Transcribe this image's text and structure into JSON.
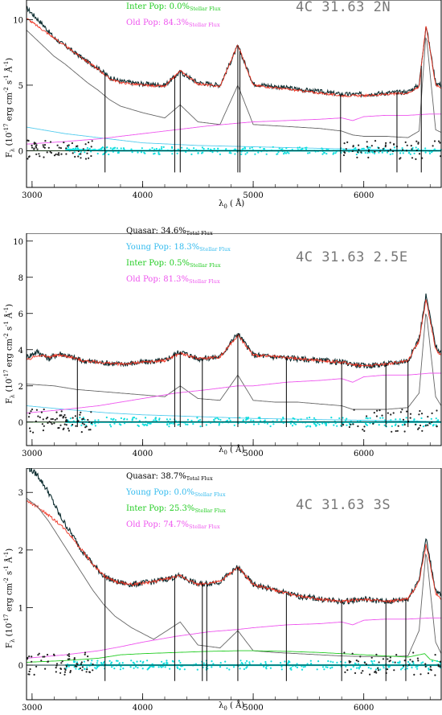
{
  "chart_data": [
    {
      "type": "line",
      "title": "4C 31.63 2N",
      "xlabel": "λ0 ( Å)",
      "ylabel": "Fλ (10^-17 erg cm^-2 s^-1 Å^-1)",
      "xlim": [
        2950,
        6700
      ],
      "ylim": [
        -2.8,
        11.5
      ],
      "xticks": [
        3000,
        4000,
        5000,
        6000
      ],
      "yticks": [
        0,
        5,
        10
      ],
      "legend": [
        {
          "label": "Inter Pop: 0.0%",
          "sub": "Stellar Flux",
          "color": "#22cc22"
        },
        {
          "label": "Old Pop: 84.3%",
          "sub": "Stellar Flux",
          "color": "#ee55ee"
        }
      ],
      "series": [
        {
          "name": "Observed",
          "color": "#0d2d30",
          "x": [
            2950,
            3100,
            3200,
            3300,
            3400,
            3500,
            3600,
            3700,
            3800,
            4000,
            4200,
            4340,
            4500,
            4700,
            4861,
            5000,
            5200,
            5400,
            5600,
            5800,
            6000,
            6200,
            6400,
            6500,
            6563,
            6650,
            6700
          ],
          "y": [
            10.9,
            9.6,
            8.6,
            8.0,
            7.4,
            6.8,
            6.3,
            5.6,
            5.3,
            5.1,
            5.0,
            6.0,
            5.2,
            5.0,
            8.0,
            5.1,
            4.9,
            4.7,
            4.5,
            4.3,
            4.3,
            4.4,
            4.5,
            5.0,
            9.6,
            5.2,
            5.0
          ]
        },
        {
          "name": "Model",
          "color": "#ee3322",
          "x": [
            2950,
            3100,
            3200,
            3300,
            3400,
            3500,
            3600,
            3700,
            3800,
            4000,
            4200,
            4340,
            4500,
            4700,
            4861,
            5000,
            5200,
            5400,
            5600,
            5800,
            6000,
            6200,
            6400,
            6500,
            6563,
            6650,
            6700
          ],
          "y": [
            10.1,
            9.2,
            8.6,
            8.0,
            7.4,
            6.8,
            6.2,
            5.5,
            5.2,
            5.0,
            4.9,
            6.1,
            5.1,
            4.9,
            8.1,
            5.0,
            4.8,
            4.6,
            4.4,
            4.2,
            4.2,
            4.3,
            4.4,
            4.9,
            9.6,
            5.0,
            4.8
          ]
        },
        {
          "name": "Quasar",
          "color": "#666666",
          "x": [
            2950,
            3100,
            3200,
            3300,
            3400,
            3500,
            3600,
            3700,
            3800,
            4000,
            4200,
            4340,
            4500,
            4700,
            4861,
            5000,
            5200,
            5400,
            5600,
            5800,
            5900,
            6000,
            6200,
            6400,
            6500,
            6563,
            6650,
            6700
          ],
          "y": [
            9.2,
            8.0,
            7.2,
            6.6,
            5.9,
            5.2,
            4.6,
            3.9,
            3.4,
            2.9,
            2.5,
            3.5,
            2.2,
            2.0,
            5.0,
            2.0,
            1.9,
            1.8,
            1.7,
            1.5,
            1.2,
            1.1,
            1.1,
            1.0,
            1.5,
            9.0,
            1.6,
            1.4
          ]
        },
        {
          "name": "Young Pop",
          "color": "#55ccee",
          "x": [
            2950,
            3300,
            3700,
            4000,
            4500,
            5000,
            5500,
            6000,
            6500,
            6700
          ],
          "y": [
            1.8,
            1.3,
            0.9,
            0.6,
            0.4,
            0.3,
            0.2,
            0.1,
            0.05,
            0.02
          ]
        },
        {
          "name": "Inter Pop",
          "color": "#22cc22",
          "x": [
            2950,
            4000,
            5000,
            6000,
            6700
          ],
          "y": [
            0.0,
            0.0,
            0.0,
            0.0,
            0.0
          ]
        },
        {
          "name": "Old Pop",
          "color": "#ee55ee",
          "x": [
            2950,
            3300,
            3600,
            3800,
            4000,
            4300,
            4600,
            4861,
            5000,
            5300,
            5600,
            5800,
            5900,
            6000,
            6200,
            6400,
            6600,
            6700
          ],
          "y": [
            0.5,
            0.7,
            0.9,
            1.1,
            1.3,
            1.6,
            1.9,
            2.1,
            2.2,
            2.3,
            2.4,
            2.5,
            2.3,
            2.6,
            2.7,
            2.7,
            2.8,
            2.8
          ]
        },
        {
          "name": "Residual",
          "color": "#11dddd",
          "x": [
            3300,
            3700,
            4000,
            4500,
            5000,
            5500,
            6000,
            6500,
            6700
          ],
          "y": [
            0.1,
            0.0,
            0.0,
            0.0,
            0.0,
            0.0,
            0.0,
            0.0,
            0.0
          ]
        }
      ],
      "lines_x": [
        3660,
        4290,
        4340,
        4861,
        4880,
        5790,
        6300,
        6520
      ],
      "zero_line": 0
    },
    {
      "type": "line",
      "title": "4C 31.63 2.5E",
      "xlabel": "λ0 ( Å)",
      "ylabel": "Fλ (10^-17 erg cm^-2 s^-1 Å^-1)",
      "xlim": [
        2950,
        6700
      ],
      "ylim": [
        -1.3,
        11.5
      ],
      "xticks": [
        3000,
        4000,
        5000,
        6000
      ],
      "yticks": [
        0,
        2,
        4,
        6,
        8,
        10
      ],
      "legend": [
        {
          "label": "Quasar: 34.6%",
          "sub": "Total Flux",
          "color": "#000000"
        },
        {
          "label": "Young Pop: 18.3%",
          "sub": "Stellar Flux",
          "color": "#33bbee"
        },
        {
          "label": "Inter Pop: 0.5%",
          "sub": "Stellar Flux",
          "color": "#22cc22"
        },
        {
          "label": "Old Pop: 81.3%",
          "sub": "Stellar Flux",
          "color": "#ee55ee"
        }
      ],
      "series": [
        {
          "name": "Observed",
          "color": "#0d2d30",
          "x": [
            2950,
            3050,
            3150,
            3250,
            3350,
            3450,
            3600,
            3800,
            4000,
            4200,
            4340,
            4500,
            4700,
            4861,
            5000,
            5200,
            5400,
            5600,
            5800,
            6000,
            6200,
            6400,
            6500,
            6563,
            6650,
            6700
          ],
          "y": [
            3.6,
            3.9,
            3.5,
            3.8,
            3.6,
            3.4,
            3.3,
            3.2,
            3.3,
            3.4,
            3.9,
            3.5,
            3.6,
            4.9,
            3.7,
            3.6,
            3.5,
            3.4,
            3.3,
            3.1,
            3.2,
            3.4,
            4.6,
            7.0,
            4.2,
            3.8
          ]
        },
        {
          "name": "Model",
          "color": "#ee3322",
          "x": [
            2950,
            3050,
            3150,
            3250,
            3350,
            3450,
            3600,
            3800,
            4000,
            4200,
            4340,
            4500,
            4700,
            4861,
            5000,
            5200,
            5400,
            5600,
            5800,
            6000,
            6200,
            6400,
            6500,
            6563,
            6650,
            6700
          ],
          "y": [
            3.4,
            3.7,
            3.6,
            3.7,
            3.6,
            3.4,
            3.3,
            3.2,
            3.3,
            3.4,
            3.8,
            3.5,
            3.6,
            4.8,
            3.7,
            3.6,
            3.5,
            3.4,
            3.3,
            3.1,
            3.2,
            3.4,
            4.5,
            6.8,
            4.0,
            3.7
          ]
        },
        {
          "name": "Quasar",
          "color": "#666666",
          "x": [
            2950,
            3200,
            3400,
            3600,
            3800,
            4000,
            4200,
            4340,
            4500,
            4700,
            4861,
            5000,
            5200,
            5400,
            5600,
            5800,
            5900,
            6000,
            6200,
            6400,
            6500,
            6563,
            6650,
            6700
          ],
          "y": [
            2.1,
            2.0,
            1.8,
            1.7,
            1.6,
            1.5,
            1.4,
            2.0,
            1.3,
            1.2,
            2.6,
            1.2,
            1.1,
            1.1,
            1.0,
            0.9,
            0.7,
            0.7,
            0.7,
            0.8,
            1.6,
            6.2,
            1.4,
            0.9
          ]
        },
        {
          "name": "Young Pop",
          "color": "#55ccee",
          "x": [
            2950,
            3300,
            3700,
            4000,
            4500,
            5000,
            5500,
            6000,
            6500,
            6700
          ],
          "y": [
            0.9,
            0.7,
            0.5,
            0.4,
            0.3,
            0.2,
            0.15,
            0.1,
            0.05,
            0.02
          ]
        },
        {
          "name": "Inter Pop",
          "color": "#22cc22",
          "x": [
            2950,
            4000,
            5000,
            6000,
            6700
          ],
          "y": [
            0.0,
            0.0,
            0.0,
            0.0,
            0.0
          ]
        },
        {
          "name": "Old Pop",
          "color": "#ee55ee",
          "x": [
            2950,
            3300,
            3600,
            3800,
            4000,
            4300,
            4600,
            4861,
            5000,
            5300,
            5600,
            5800,
            5900,
            6000,
            6200,
            6400,
            6600,
            6700
          ],
          "y": [
            0.5,
            0.7,
            0.9,
            1.1,
            1.3,
            1.6,
            1.8,
            2.0,
            2.0,
            2.2,
            2.3,
            2.4,
            2.2,
            2.5,
            2.6,
            2.6,
            2.7,
            2.7
          ]
        },
        {
          "name": "Residual",
          "color": "#11dddd",
          "x": [
            3300,
            3700,
            4000,
            4500,
            5000,
            5500,
            6000,
            6500,
            6700
          ],
          "y": [
            0.0,
            0.0,
            0.0,
            0.0,
            0.0,
            0.0,
            0.0,
            0.0,
            0.0
          ]
        }
      ],
      "lines_x": [
        3410,
        4290,
        4340,
        4540,
        4861,
        5300,
        5800,
        6200,
        6400
      ],
      "zero_line": 0
    },
    {
      "type": "line",
      "title": "4C 31.63 3S",
      "xlabel": "λ0 ( Å)",
      "ylabel": "Fλ (10^-17 erg cm^-2 s^-1 Å^-1)",
      "xlim": [
        2950,
        6700
      ],
      "ylim": [
        -0.6,
        3.45
      ],
      "xticks": [
        3000,
        4000,
        5000,
        6000
      ],
      "yticks": [
        0,
        1,
        2,
        3
      ],
      "legend": [
        {
          "label": "Quasar: 38.7%",
          "sub": "Total Flux",
          "color": "#000000"
        },
        {
          "label": "Young Pop: 0.0%",
          "sub": "Stellar Flux",
          "color": "#33bbee"
        },
        {
          "label": "Inter Pop: 25.3%",
          "sub": "Stellar Flux",
          "color": "#22cc22"
        },
        {
          "label": "Old Pop: 74.7%",
          "sub": "Stellar Flux",
          "color": "#ee55ee"
        }
      ],
      "series": [
        {
          "name": "Observed",
          "color": "#0d2d30",
          "x": [
            2950,
            3050,
            3150,
            3250,
            3350,
            3450,
            3550,
            3650,
            3750,
            3900,
            4100,
            4340,
            4500,
            4700,
            4861,
            5000,
            5200,
            5400,
            5600,
            5800,
            6000,
            6200,
            6400,
            6500,
            6563,
            6650,
            6700
          ],
          "y": [
            3.45,
            3.3,
            3.0,
            2.6,
            2.3,
            2.0,
            1.75,
            1.55,
            1.45,
            1.4,
            1.45,
            1.55,
            1.4,
            1.45,
            1.7,
            1.4,
            1.3,
            1.2,
            1.15,
            1.1,
            1.15,
            1.1,
            1.15,
            1.5,
            2.2,
            1.3,
            1.2
          ]
        },
        {
          "name": "Model",
          "color": "#ee3322",
          "x": [
            2950,
            3050,
            3150,
            3250,
            3350,
            3450,
            3550,
            3650,
            3750,
            3900,
            4100,
            4340,
            4500,
            4700,
            4861,
            5000,
            5200,
            5400,
            5600,
            5800,
            6000,
            6200,
            6400,
            6500,
            6563,
            6650,
            6700
          ],
          "y": [
            2.85,
            2.75,
            2.6,
            2.45,
            2.25,
            2.0,
            1.75,
            1.55,
            1.45,
            1.4,
            1.45,
            1.55,
            1.4,
            1.45,
            1.7,
            1.4,
            1.3,
            1.2,
            1.15,
            1.1,
            1.15,
            1.1,
            1.15,
            1.45,
            2.1,
            1.25,
            1.15
          ]
        },
        {
          "name": "Quasar",
          "color": "#666666",
          "x": [
            2950,
            3050,
            3150,
            3250,
            3350,
            3450,
            3550,
            3650,
            3750,
            3900,
            4100,
            4340,
            4500,
            4700,
            4861,
            5000,
            5200,
            5400,
            5600,
            5800,
            6000,
            6200,
            6400,
            6500,
            6563,
            6650,
            6700
          ],
          "y": [
            2.9,
            2.75,
            2.5,
            2.2,
            1.9,
            1.6,
            1.3,
            1.05,
            0.85,
            0.65,
            0.45,
            0.75,
            0.35,
            0.3,
            0.6,
            0.25,
            0.22,
            0.2,
            0.18,
            0.16,
            0.15,
            0.15,
            0.16,
            0.6,
            2.0,
            0.4,
            0.2
          ]
        },
        {
          "name": "Young Pop",
          "color": "#55ccee",
          "x": [
            2950,
            4000,
            5000,
            6000,
            6700
          ],
          "y": [
            0.0,
            0.0,
            0.0,
            0.0,
            0.0
          ]
        },
        {
          "name": "Inter Pop",
          "color": "#22cc22",
          "x": [
            2950,
            3300,
            3600,
            3800,
            4000,
            4300,
            4600,
            4861,
            5000,
            5300,
            5600,
            5800,
            6000,
            6200,
            6400,
            6550,
            6600,
            6700
          ],
          "y": [
            0.05,
            0.08,
            0.12,
            0.18,
            0.2,
            0.22,
            0.24,
            0.25,
            0.25,
            0.24,
            0.22,
            0.2,
            0.18,
            0.16,
            0.14,
            0.2,
            0.1,
            0.05
          ]
        },
        {
          "name": "Old Pop",
          "color": "#ee55ee",
          "x": [
            2950,
            3300,
            3600,
            3800,
            4000,
            4300,
            4600,
            4861,
            5000,
            5300,
            5600,
            5800,
            5900,
            6000,
            6200,
            6400,
            6600,
            6700
          ],
          "y": [
            0.12,
            0.18,
            0.25,
            0.32,
            0.4,
            0.5,
            0.58,
            0.62,
            0.65,
            0.7,
            0.72,
            0.75,
            0.7,
            0.78,
            0.8,
            0.8,
            0.82,
            0.82
          ]
        },
        {
          "name": "Residual",
          "color": "#11dddd",
          "x": [
            3300,
            3700,
            4000,
            4500,
            5000,
            5500,
            6000,
            6500,
            6700
          ],
          "y": [
            0.0,
            0.0,
            0.0,
            0.0,
            0.0,
            0.0,
            0.0,
            0.0,
            0.0
          ]
        }
      ],
      "lines_x": [
        3660,
        4290,
        4540,
        4580,
        4861,
        5300,
        5800,
        6200,
        6380
      ],
      "zero_line": 0
    }
  ]
}
